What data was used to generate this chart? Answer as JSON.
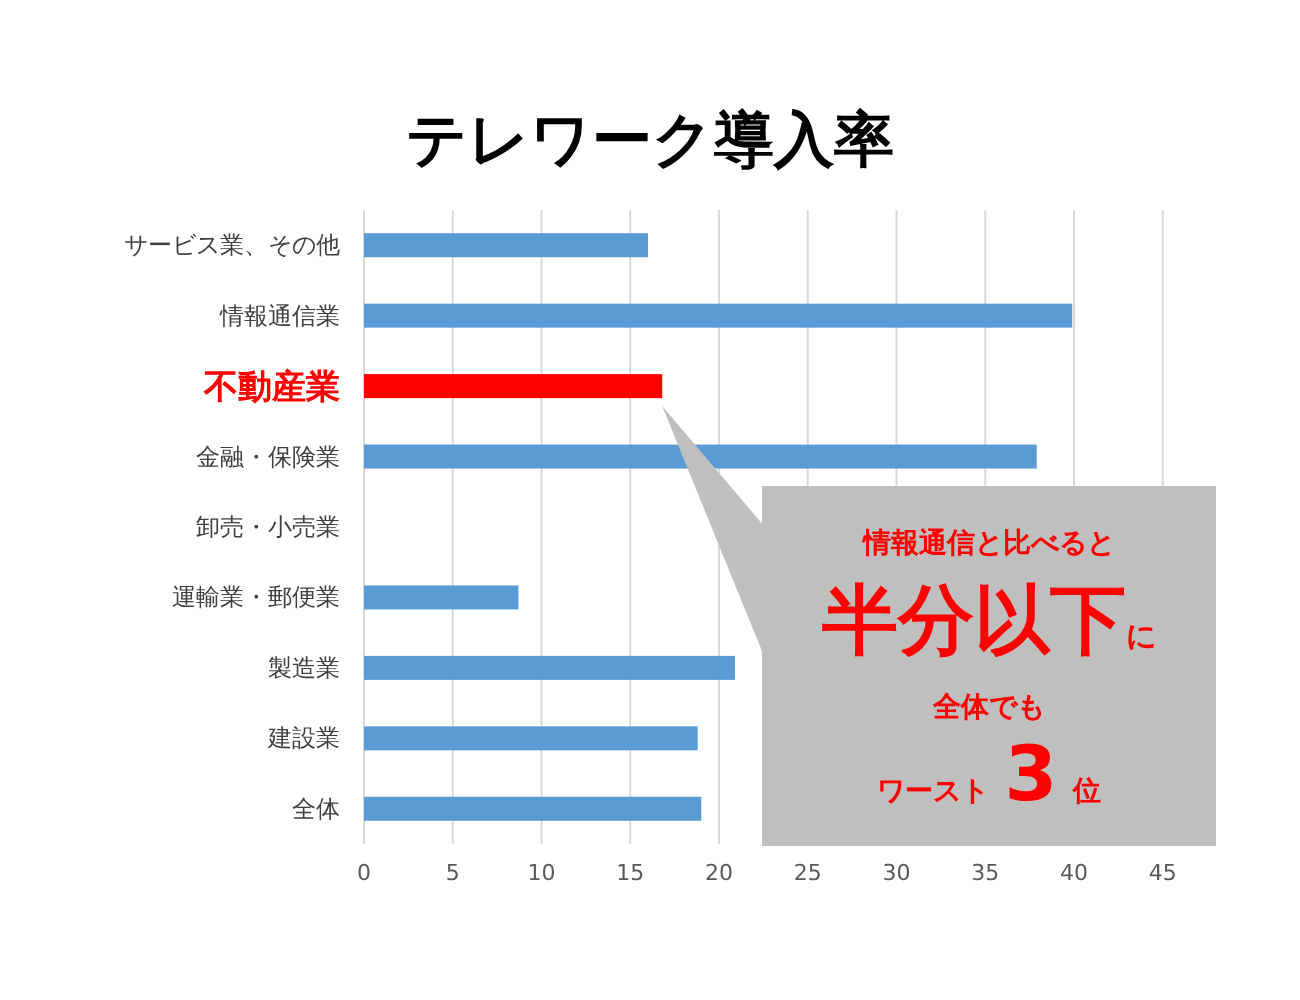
{
  "chart_data": {
    "type": "bar",
    "orientation": "horizontal",
    "title": "テレワーク導入率",
    "categories": [
      "サービス業、その他",
      "情報通信業",
      "不動産業",
      "金融・保険業",
      "卸売・小売業",
      "運輸業・郵便業",
      "製造業",
      "建設業",
      "全体"
    ],
    "values": [
      16.0,
      39.9,
      16.8,
      37.9,
      null,
      8.7,
      20.9,
      18.8,
      19.0
    ],
    "colors": [
      "#5b9bd5",
      "#5b9bd5",
      "#ff0000",
      "#5b9bd5",
      "#5b9bd5",
      "#5b9bd5",
      "#5b9bd5",
      "#5b9bd5",
      "#5b9bd5"
    ],
    "xlim": [
      0,
      48
    ],
    "xticks": [
      0,
      5,
      10,
      15,
      20,
      25,
      30,
      35,
      40,
      45
    ],
    "grid": "x",
    "annotations": [
      "情報通信と比べると",
      "半分以下",
      "に",
      "全体でも",
      "ワースト",
      "3",
      "位"
    ]
  }
}
